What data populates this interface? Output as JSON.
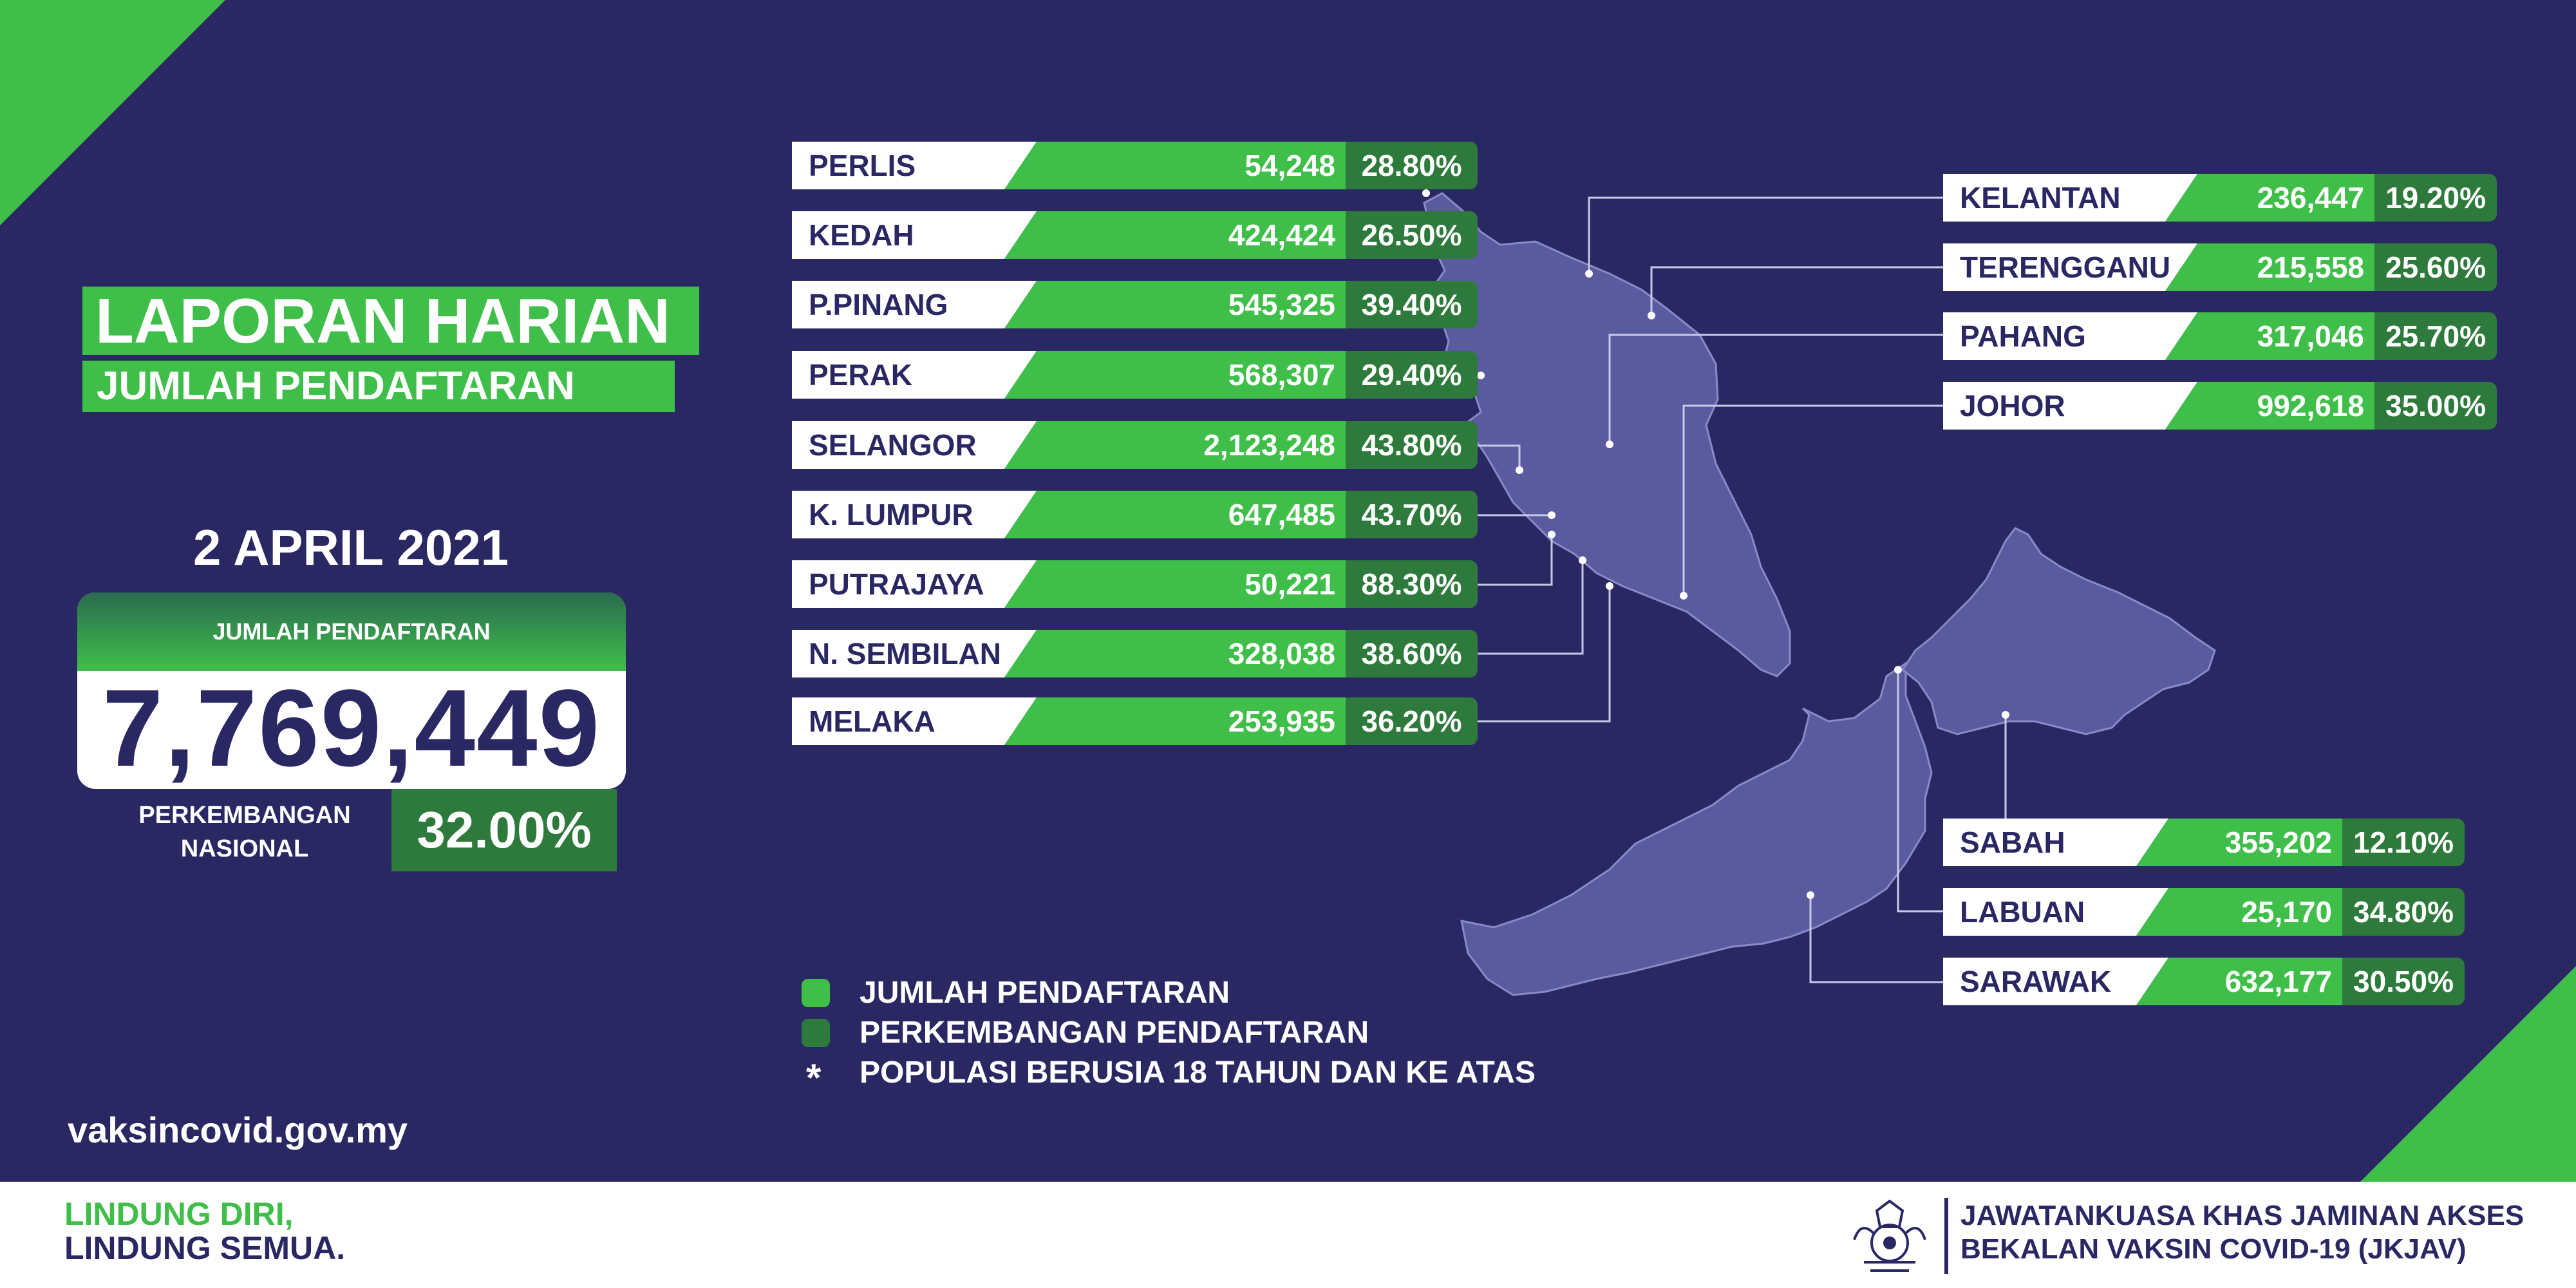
{
  "header": {
    "title_line1": "LAPORAN HARIAN",
    "title_line2": "JUMLAH PENDAFTARAN",
    "date": "2 APRIL 2021"
  },
  "summary": {
    "card_label": "JUMLAH PENDAFTARAN",
    "total": "7,769,449",
    "growth_label_line1": "PERKEMBANGAN",
    "growth_label_line2": "NASIONAL",
    "growth_value": "32.00%"
  },
  "states_west": [
    {
      "name": "PERLIS",
      "count": "54,248",
      "percent": "28.80%"
    },
    {
      "name": "KEDAH",
      "count": "424,424",
      "percent": "26.50%"
    },
    {
      "name": "P.PINANG",
      "count": "545,325",
      "percent": "39.40%"
    },
    {
      "name": "PERAK",
      "count": "568,307",
      "percent": "29.40%"
    },
    {
      "name": "SELANGOR",
      "count": "2,123,248",
      "percent": "43.80%"
    },
    {
      "name": "K. LUMPUR",
      "count": "647,485",
      "percent": "43.70%"
    },
    {
      "name": "PUTRAJAYA",
      "count": "50,221",
      "percent": "88.30%"
    },
    {
      "name": "N. SEMBILAN",
      "count": "328,038",
      "percent": "38.60%"
    },
    {
      "name": "MELAKA",
      "count": "253,935",
      "percent": "36.20%"
    }
  ],
  "states_east_peninsular": [
    {
      "name": "KELANTAN",
      "count": "236,447",
      "percent": "19.20%"
    },
    {
      "name": "TERENGGANU",
      "count": "215,558",
      "percent": "25.60%"
    },
    {
      "name": "PAHANG",
      "count": "317,046",
      "percent": "25.70%"
    },
    {
      "name": "JOHOR",
      "count": "992,618",
      "percent": "35.00%"
    }
  ],
  "states_borneo": [
    {
      "name": "SABAH",
      "count": "355,202",
      "percent": "12.10%"
    },
    {
      "name": "LABUAN",
      "count": "25,170",
      "percent": "34.80%"
    },
    {
      "name": "SARAWAK",
      "count": "632,177",
      "percent": "30.50%"
    }
  ],
  "legend": {
    "item1": "JUMLAH PENDAFTARAN",
    "item2": "PERKEMBANGAN PENDAFTARAN",
    "star_symbol": "*",
    "item3": "POPULASI BERUSIA 18 TAHUN DAN KE ATAS"
  },
  "website": "vaksincovid.gov.my",
  "footer": {
    "slogan_line1": "LINDUNG DIRI,",
    "slogan_line2": "LINDUNG SEMUA.",
    "org_line1": "JAWATANKUASA KHAS JAMINAN AKSES",
    "org_line2": "BEKALAN VAKSIN COVID-19 (JKJAV)"
  },
  "colors": {
    "background": "#2a2863",
    "registration_green": "#3fbf4a",
    "growth_green": "#2e7a3c",
    "map_fill": "#5a5a9e"
  }
}
